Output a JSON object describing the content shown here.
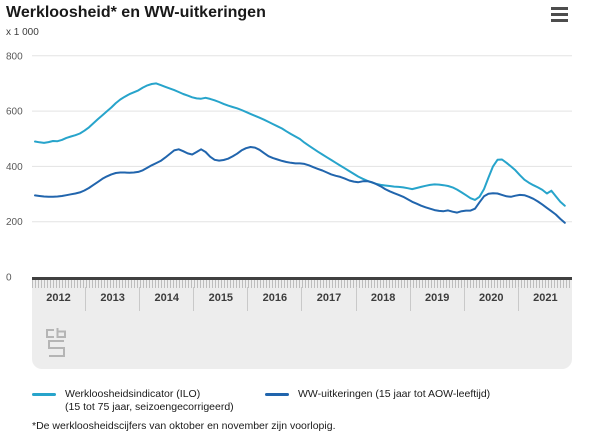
{
  "header": {
    "title": "Werkloosheid* en WW-uitkeringen"
  },
  "units_label": "x 1 000",
  "chart_data": {
    "type": "line",
    "title": "Werkloosheid* en WW-uitkeringen",
    "unit_label": "x 1 000",
    "ylim": [
      0,
      800
    ],
    "y_ticks": [
      0,
      200,
      400,
      600,
      800
    ],
    "grid": true,
    "legend_position": "bottom",
    "x_start": "2012-01",
    "x_end": "2021-11",
    "x_year_labels": [
      "2012",
      "2013",
      "2014",
      "2015",
      "2016",
      "2017",
      "2018",
      "2019",
      "2020",
      "2021"
    ],
    "series": [
      {
        "name": "Werkloosheidsindicator (ILO) (15 tot 75 jaar, seizoengecorrigeerd)",
        "color": "#27a4cb",
        "values": [
          490,
          487,
          485,
          488,
          492,
          491,
          496,
          503,
          508,
          513,
          519,
          529,
          541,
          556,
          571,
          585,
          599,
          613,
          629,
          642,
          652,
          661,
          668,
          675,
          685,
          693,
          698,
          700,
          694,
          688,
          682,
          676,
          669,
          662,
          656,
          650,
          646,
          645,
          648,
          644,
          639,
          633,
          626,
          620,
          615,
          610,
          604,
          597,
          590,
          583,
          576,
          569,
          561,
          553,
          545,
          537,
          527,
          517,
          508,
          499,
          486,
          475,
          464,
          453,
          443,
          433,
          423,
          413,
          403,
          393,
          383,
          373,
          363,
          355,
          348,
          342,
          337,
          333,
          331,
          329,
          327,
          326,
          324,
          321,
          318,
          322,
          326,
          330,
          333,
          335,
          334,
          332,
          329,
          324,
          316,
          306,
          296,
          285,
          279,
          290,
          318,
          360,
          400,
          424,
          425,
          413,
          400,
          386,
          368,
          352,
          341,
          332,
          324,
          315,
          302,
          312,
          292,
          272,
          258
        ]
      },
      {
        "name": "WW-uitkeringen (15 jaar tot AOW-leeftijd)",
        "color": "#2165ad",
        "values": [
          295,
          293,
          291,
          290,
          290,
          291,
          293,
          296,
          299,
          302,
          306,
          313,
          322,
          333,
          344,
          355,
          364,
          371,
          376,
          378,
          378,
          377,
          378,
          380,
          386,
          395,
          404,
          412,
          420,
          432,
          445,
          458,
          462,
          455,
          447,
          443,
          452,
          462,
          452,
          435,
          424,
          421,
          423,
          428,
          436,
          446,
          458,
          466,
          470,
          468,
          460,
          448,
          437,
          430,
          425,
          420,
          416,
          413,
          411,
          411,
          409,
          404,
          397,
          391,
          385,
          378,
          371,
          366,
          362,
          356,
          349,
          345,
          343,
          346,
          347,
          343,
          336,
          328,
          318,
          310,
          303,
          297,
          290,
          281,
          272,
          265,
          258,
          252,
          247,
          242,
          239,
          238,
          241,
          236,
          233,
          238,
          240,
          240,
          247,
          270,
          292,
          301,
          303,
          302,
          297,
          292,
          290,
          294,
          297,
          296,
          290,
          283,
          273,
          262,
          250,
          238,
          226,
          210,
          196
        ]
      }
    ]
  },
  "legend": {
    "items": [
      {
        "line1": "Werkloosheidsindicator (ILO)",
        "line2": "(15 tot 75 jaar, seizoengecorrigeerd)",
        "color": "#27a4cb"
      },
      {
        "line1": "WW-uitkeringen (15 jaar tot AOW-leeftijd)",
        "line2": "",
        "color": "#2165ad"
      }
    ]
  },
  "footnote": "*De werkloosheidscijfers van oktober en november zijn voorlopig.",
  "branding": {
    "logo": "cbs-logo"
  },
  "colors": {
    "grid": "#e3e3e3",
    "axis": "#404040",
    "band_bg": "#ededed",
    "tick": "#bdbdbd",
    "text": "#1a1a1a",
    "muted_text": "#595959",
    "logo_gray": "#b5b5b5"
  }
}
